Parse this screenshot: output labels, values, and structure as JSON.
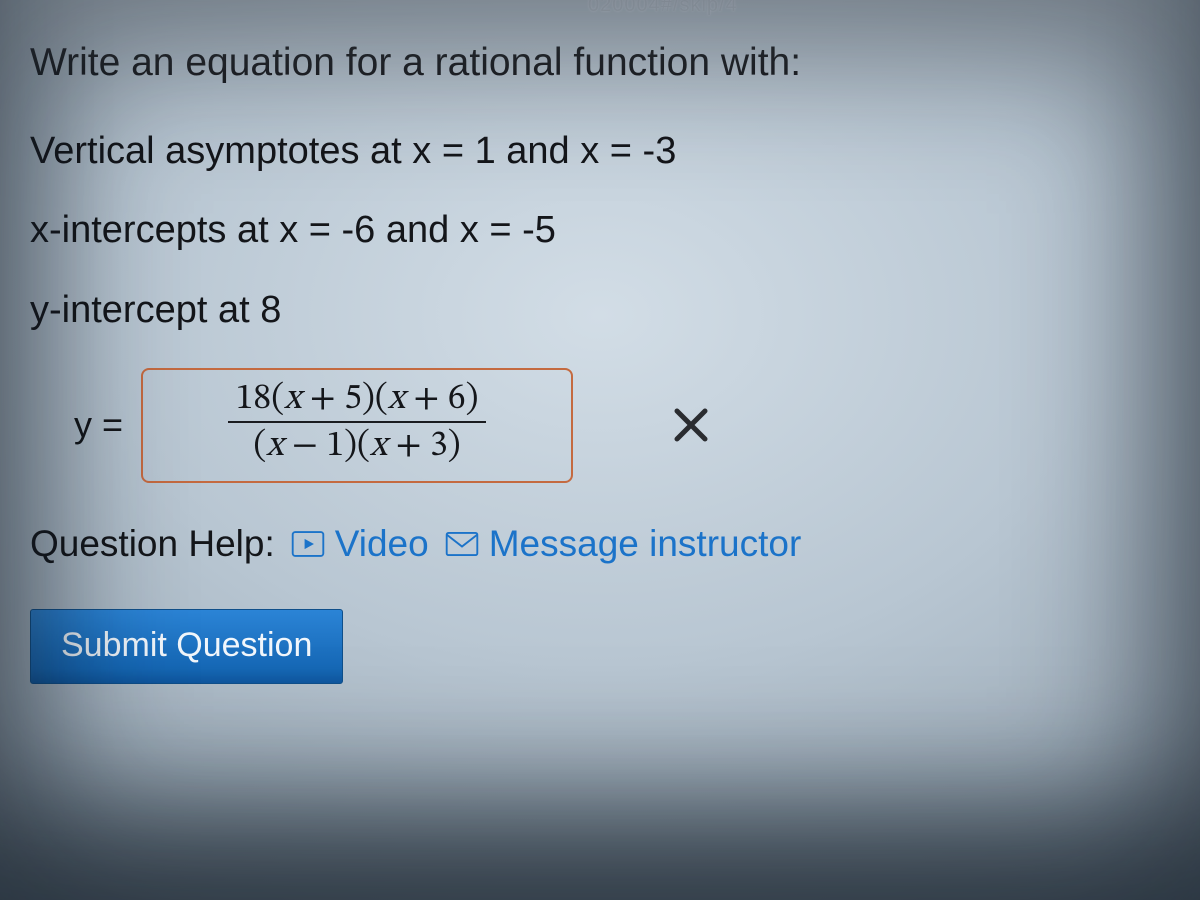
{
  "url_fragment": "020004#/skip/4",
  "prompt": "Write an equation for a rational function with:",
  "cond1": "Vertical asymptotes at x = 1 and x = -3",
  "cond2": "x-intercepts at x = -6 and x = -5",
  "cond3": "y-intercept at 8",
  "answer_label": "y =",
  "answer": {
    "numerator": "18(x + 5)(x + 6)",
    "denominator": "(x − 1)(x + 3)"
  },
  "feedback": "incorrect",
  "help_label": "Question Help:",
  "help_links": {
    "video": "Video",
    "message": "Message instructor"
  },
  "submit_label": "Submit Question",
  "colors": {
    "link": "#1b73c9",
    "box_border": "#c46a40",
    "submit_bg": "#1a73c4",
    "text": "#14161a"
  }
}
